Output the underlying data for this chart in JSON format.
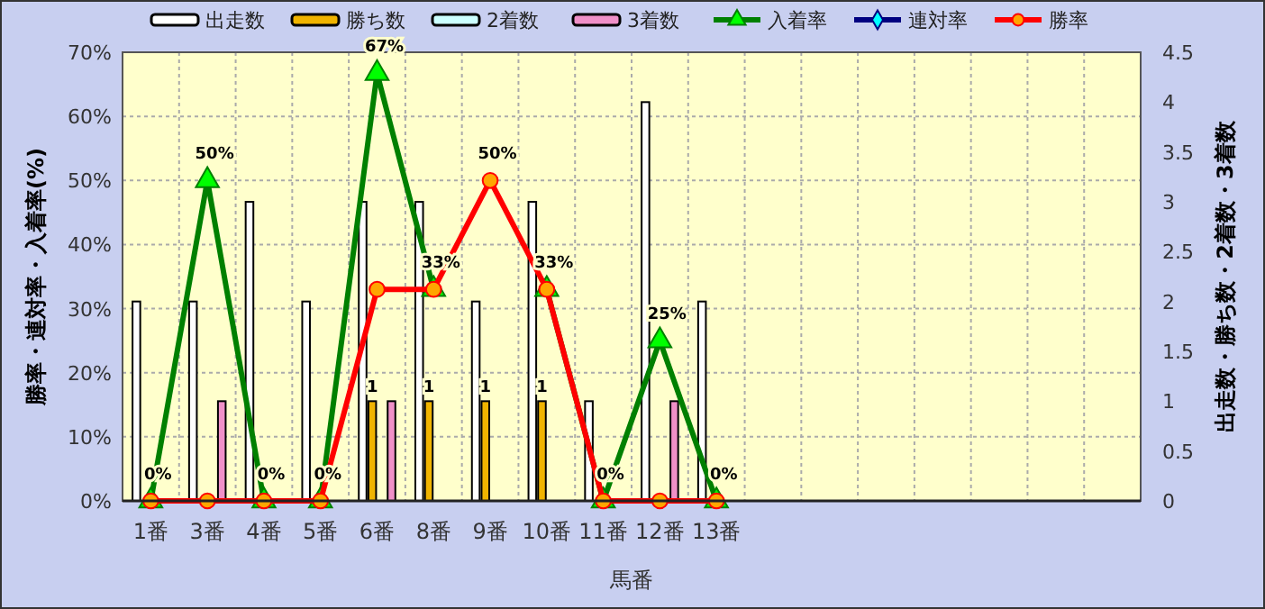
{
  "chart_data": {
    "type": "bar",
    "xlabel": "馬番",
    "ylabel": "勝率・連対率・入着率(%)",
    "y2label": "出走数・勝ち数・2着数・3着数",
    "categories": [
      "1番",
      "3番",
      "4番",
      "5番",
      "6番",
      "8番",
      "9番",
      "10番",
      "11番",
      "12番",
      "13番",
      null,
      null,
      null,
      null,
      null,
      null,
      null
    ],
    "series": [
      {
        "name": "出走数",
        "axis": "y2",
        "color": "#ffffff",
        "values": [
          2,
          2,
          3,
          2,
          3,
          3,
          2,
          3,
          1,
          4,
          2,
          null,
          null,
          null,
          null,
          null,
          null,
          null
        ]
      },
      {
        "name": "勝ち数",
        "axis": "y2",
        "color": "#f0b400",
        "values": [
          0,
          0,
          0,
          0,
          1,
          1,
          1,
          1,
          0,
          0,
          0,
          null,
          null,
          null,
          null,
          null,
          null,
          null
        ],
        "value_labels": [
          null,
          null,
          null,
          null,
          "1",
          "1",
          "1",
          "1",
          null,
          null,
          null,
          null,
          null,
          null,
          null,
          null,
          null,
          null
        ]
      },
      {
        "name": "2着数",
        "axis": "y2",
        "color": "#ccffff",
        "values": [
          0,
          0,
          0,
          0,
          0,
          0,
          0,
          0,
          0,
          0,
          0,
          null,
          null,
          null,
          null,
          null,
          null,
          null
        ]
      },
      {
        "name": "3着数",
        "axis": "y2",
        "color": "#f090c8",
        "values": [
          0,
          1,
          0,
          0,
          1,
          0,
          0,
          0,
          0,
          1,
          0,
          null,
          null,
          null,
          null,
          null,
          null,
          null
        ]
      },
      {
        "name": "入着率",
        "type": "line",
        "axis": "y",
        "color": "#008000",
        "marker": "triangle",
        "values": [
          0,
          50,
          0,
          0,
          66.7,
          33,
          null,
          33,
          0,
          25,
          0,
          null,
          null,
          null,
          null,
          null,
          null,
          null
        ],
        "value_labels": [
          "0%",
          "50%",
          "0%",
          "0%",
          "67%",
          "33%",
          null,
          "33%",
          "0%",
          "25%",
          "0%",
          null,
          null,
          null,
          null,
          null,
          null,
          null
        ]
      },
      {
        "name": "連対率",
        "type": "line",
        "axis": "y",
        "color": "#000080",
        "marker": "diamond",
        "values": [
          null,
          null,
          null,
          null,
          null,
          null,
          null,
          null,
          null,
          null,
          null,
          null,
          null,
          null,
          null,
          null,
          null,
          null
        ]
      },
      {
        "name": "勝率",
        "type": "line",
        "axis": "y",
        "color": "#ff0000",
        "marker": "circle",
        "values": [
          0,
          0,
          0,
          0,
          33,
          33,
          50,
          33,
          0,
          0,
          0,
          null,
          null,
          null,
          null,
          null,
          null,
          null
        ],
        "value_labels": [
          null,
          null,
          null,
          null,
          null,
          null,
          "50%",
          null,
          null,
          null,
          null,
          null,
          null,
          null,
          null,
          null,
          null,
          null
        ]
      }
    ],
    "ylim": [
      0,
      70
    ],
    "yticks": [
      {
        "value": 0,
        "label": "0%"
      },
      {
        "value": 10,
        "label": "10%"
      },
      {
        "value": 20,
        "label": "20%"
      },
      {
        "value": 30,
        "label": "30%"
      },
      {
        "value": 40,
        "label": "40%"
      },
      {
        "value": 50,
        "label": "50%"
      },
      {
        "value": 60,
        "label": "60%"
      },
      {
        "value": 70,
        "label": "70%"
      }
    ],
    "y2lim": [
      0,
      4.5
    ],
    "y2ticks": [
      0,
      0.5,
      1,
      1.5,
      2,
      2.5,
      3,
      3.5,
      4,
      4.5
    ],
    "grid": true,
    "legend": "top"
  }
}
